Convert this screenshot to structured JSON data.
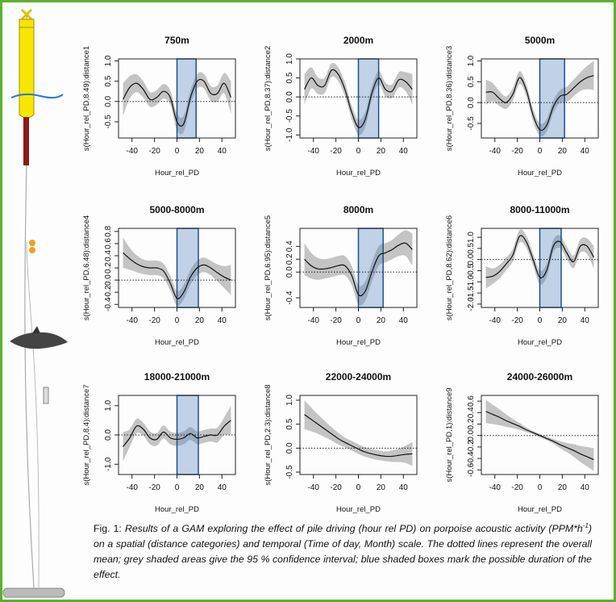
{
  "chart_data": [
    {
      "type": "line",
      "title": "750m",
      "ylabel": "s(Hour_rel_PD,8.49):distance1",
      "xlabel": "Hour_rel_PD",
      "x": [
        -48,
        -42,
        -36,
        -30,
        -24,
        -18,
        -12,
        -6,
        0,
        6,
        12,
        18,
        24,
        30,
        36,
        42,
        48
      ],
      "values": [
        0.05,
        0.35,
        0.45,
        0.3,
        0.05,
        0.1,
        0.25,
        0.1,
        -0.5,
        -0.55,
        0.1,
        0.5,
        0.5,
        0.2,
        0.2,
        0.45,
        0.1
      ],
      "upper": [
        0.45,
        0.63,
        0.67,
        0.5,
        0.23,
        0.28,
        0.43,
        0.28,
        -0.3,
        -0.35,
        0.28,
        0.68,
        0.68,
        0.38,
        0.4,
        0.7,
        0.5
      ],
      "lower": [
        -0.35,
        0.07,
        0.23,
        0.1,
        -0.13,
        -0.08,
        0.07,
        -0.08,
        -0.7,
        -0.75,
        -0.08,
        0.32,
        0.32,
        0.02,
        0,
        0.2,
        -0.3
      ],
      "mean": 0,
      "highlight": [
        0,
        17
      ],
      "xlim": [
        -52,
        52
      ],
      "xticks": [
        -40,
        -20,
        0,
        20,
        40
      ],
      "ylim": [
        -0.9,
        1.05
      ],
      "yticks": [
        -0.5,
        {
          "value": 0,
          "label": "0.0"
        },
        0.5,
        {
          "value": 1,
          "label": "1.0"
        }
      ]
    },
    {
      "type": "line",
      "title": "2000m",
      "ylabel": "s(Hour_rel_PD,8.37):distance2",
      "xlabel": "Hour_rel_PD",
      "x": [
        -48,
        -42,
        -36,
        -30,
        -24,
        -18,
        -12,
        -6,
        0,
        6,
        12,
        18,
        24,
        30,
        36,
        42,
        48
      ],
      "values": [
        0.2,
        0.5,
        0.3,
        0.3,
        0.7,
        0.6,
        0.2,
        -0.4,
        -0.8,
        -0.6,
        0.1,
        0.5,
        0.2,
        0.15,
        0.45,
        0.4,
        0.2
      ],
      "upper": [
        0.6,
        0.78,
        0.52,
        0.5,
        0.88,
        0.78,
        0.38,
        -0.22,
        -0.6,
        -0.4,
        0.28,
        0.68,
        0.38,
        0.33,
        0.65,
        0.65,
        0.6
      ],
      "lower": [
        -0.2,
        0.22,
        0.08,
        0.1,
        0.52,
        0.42,
        0.02,
        -0.58,
        -1.0,
        -0.8,
        -0.08,
        0.32,
        0.02,
        -0.03,
        0.25,
        0.15,
        -0.2
      ],
      "mean": 0,
      "highlight": [
        0,
        18
      ],
      "xlim": [
        -52,
        52
      ],
      "xticks": [
        -40,
        -20,
        0,
        20,
        40
      ],
      "ylim": [
        -1.08,
        1.0
      ],
      "yticks": [
        {
          "value": -1,
          "label": "-1.0"
        },
        -0.5,
        {
          "value": 0,
          "label": "0.0"
        },
        0.5,
        {
          "value": 1,
          "label": "1.0"
        }
      ]
    },
    {
      "type": "line",
      "title": "5000m",
      "ylabel": "s(Hour_rel_PD,8.36):distance3",
      "xlabel": "Hour_rel_PD",
      "x": [
        -48,
        -42,
        -36,
        -30,
        -24,
        -18,
        -12,
        -6,
        0,
        6,
        12,
        18,
        24,
        30,
        36,
        42,
        48
      ],
      "values": [
        0.25,
        0.25,
        0.1,
        0.0,
        0.2,
        0.6,
        0.3,
        -0.3,
        -0.65,
        -0.55,
        -0.1,
        0.15,
        0.2,
        0.35,
        0.5,
        0.6,
        0.65
      ],
      "upper": [
        0.55,
        0.47,
        0.28,
        0.15,
        0.35,
        0.75,
        0.45,
        -0.15,
        -0.5,
        -0.4,
        0.05,
        0.3,
        0.38,
        0.55,
        0.72,
        0.88,
        1.0
      ],
      "lower": [
        -0.05,
        0.03,
        -0.08,
        -0.15,
        0.05,
        0.45,
        0.15,
        -0.45,
        -0.8,
        -0.7,
        -0.25,
        0,
        0.02,
        0.15,
        0.28,
        0.32,
        0.3
      ],
      "mean": 0,
      "highlight": [
        0,
        22
      ],
      "xlim": [
        -52,
        52
      ],
      "xticks": [
        -40,
        -20,
        0,
        20,
        40
      ],
      "ylim": [
        -0.85,
        1.05
      ],
      "yticks": [
        -0.5,
        {
          "value": 0,
          "label": "0.0"
        },
        0.5,
        {
          "value": 1,
          "label": "1.0"
        }
      ]
    },
    {
      "type": "line",
      "title": "5000-8000m",
      "ylabel": "s(Hour_rel_PD,6.48):distance4",
      "xlabel": "Hour_rel_PD",
      "x": [
        -48,
        -42,
        -36,
        -30,
        -24,
        -18,
        -12,
        -6,
        0,
        6,
        12,
        18,
        24,
        30,
        36,
        42,
        48
      ],
      "values": [
        0.45,
        0.35,
        0.27,
        0.22,
        0.2,
        0.2,
        0.15,
        -0.05,
        -0.3,
        -0.2,
        0.05,
        0.2,
        0.25,
        0.2,
        0.12,
        0.05,
        0
      ],
      "upper": [
        0.7,
        0.53,
        0.41,
        0.34,
        0.32,
        0.32,
        0.27,
        0.07,
        -0.18,
        -0.08,
        0.17,
        0.32,
        0.37,
        0.32,
        0.26,
        0.23,
        0.25
      ],
      "lower": [
        0.2,
        0.17,
        0.13,
        0.1,
        0.08,
        0.08,
        0.03,
        -0.17,
        -0.42,
        -0.32,
        -0.07,
        0.08,
        0.13,
        0.08,
        -0.02,
        -0.13,
        -0.25
      ],
      "mean": 0,
      "highlight": [
        0,
        19
      ],
      "xlim": [
        -52,
        52
      ],
      "xticks": [
        -40,
        -20,
        0,
        20,
        40
      ],
      "ylim": [
        -0.45,
        0.85
      ],
      "yticks": [
        -0.4,
        -0.2,
        {
          "value": 0,
          "label": "0.0"
        },
        0.2,
        0.4,
        0.6,
        0.8
      ]
    },
    {
      "type": "line",
      "title": "8000m",
      "ylabel": "s(Hour_rel_PD,6.95):distance5",
      "xlabel": "Hour_rel_PD",
      "x": [
        -48,
        -42,
        -36,
        -30,
        -24,
        -18,
        -12,
        -6,
        0,
        6,
        12,
        18,
        24,
        30,
        36,
        42,
        48
      ],
      "values": [
        0.2,
        0.1,
        0.05,
        0.05,
        0.07,
        0.1,
        0.1,
        -0.05,
        -0.35,
        -0.3,
        0,
        0.25,
        0.3,
        0.35,
        0.42,
        0.45,
        0.35
      ],
      "upper": [
        0.45,
        0.3,
        0.22,
        0.2,
        0.22,
        0.25,
        0.25,
        0.1,
        -0.2,
        -0.15,
        0.15,
        0.4,
        0.45,
        0.5,
        0.59,
        0.65,
        0.6
      ],
      "lower": [
        -0.05,
        -0.1,
        -0.12,
        -0.1,
        -0.08,
        -0.05,
        -0.05,
        -0.2,
        -0.5,
        -0.45,
        -0.15,
        0.1,
        0.15,
        0.2,
        0.25,
        0.25,
        0.1
      ],
      "mean": 0,
      "highlight": [
        0,
        22
      ],
      "xlim": [
        -52,
        52
      ],
      "xticks": [
        -40,
        -20,
        0,
        20,
        40
      ],
      "ylim": [
        -0.55,
        0.68
      ],
      "yticks": [
        -0.4,
        {
          "value": 0,
          "label": "0.0"
        },
        0.2,
        0.4
      ]
    },
    {
      "type": "line",
      "title": "8000-11000m",
      "ylabel": "s(Hour_rel_PD,8.62):distance6",
      "xlabel": "Hour_rel_PD",
      "x": [
        -48,
        -42,
        -36,
        -30,
        -24,
        -18,
        -12,
        -6,
        0,
        6,
        12,
        18,
        24,
        30,
        36,
        42,
        48
      ],
      "values": [
        -0.8,
        -0.75,
        -0.55,
        -0.2,
        0.2,
        1.05,
        0.8,
        0,
        -0.8,
        -0.5,
        0.6,
        0.8,
        0.3,
        -0.1,
        0.6,
        0.6,
        0.1
      ],
      "upper": [
        -0.3,
        -0.4,
        -0.25,
        0.08,
        0.48,
        1.33,
        1.08,
        0.28,
        -0.5,
        -0.2,
        0.88,
        1.08,
        0.58,
        0.18,
        0.9,
        0.95,
        0.6
      ],
      "lower": [
        -1.3,
        -1.1,
        -0.85,
        -0.48,
        -0.08,
        0.77,
        0.52,
        -0.28,
        -1.1,
        -0.8,
        0.32,
        0.52,
        0.02,
        -0.38,
        0.3,
        0.25,
        -0.4
      ],
      "mean": 0,
      "highlight": [
        0,
        19
      ],
      "xlim": [
        -52,
        52
      ],
      "xticks": [
        -40,
        -20,
        0,
        20,
        40
      ],
      "ylim": [
        -2.15,
        1.4
      ],
      "yticks": [
        {
          "value": -2,
          "label": "-2.0"
        },
        -1.5,
        {
          "value": -1,
          "label": "-1.0"
        },
        -0.5,
        {
          "value": 0,
          "label": "0.0"
        },
        0.5,
        {
          "value": 1,
          "label": "1.0"
        }
      ]
    },
    {
      "type": "line",
      "title": "18000-21000m",
      "ylabel": "s(Hour_rel_PD,8.4):distance7",
      "xlabel": "Hour_rel_PD",
      "x": [
        -48,
        -42,
        -36,
        -30,
        -24,
        -18,
        -12,
        -6,
        0,
        6,
        12,
        18,
        24,
        30,
        36,
        42,
        48
      ],
      "values": [
        -0.4,
        -0.1,
        0.3,
        0.2,
        -0.1,
        -0.15,
        0.1,
        -0.1,
        -0.15,
        -0.1,
        0.05,
        -0.1,
        -0.05,
        0,
        0,
        0.3,
        0.5
      ],
      "upper": [
        0.1,
        0.2,
        0.55,
        0.42,
        0.12,
        0.07,
        0.32,
        0.12,
        0.07,
        0.12,
        0.27,
        0.12,
        0.17,
        0.22,
        0.25,
        0.6,
        1.0
      ],
      "lower": [
        -0.9,
        -0.4,
        0.05,
        -0.02,
        -0.32,
        -0.37,
        -0.12,
        -0.32,
        -0.37,
        -0.32,
        -0.17,
        -0.32,
        -0.27,
        -0.22,
        -0.25,
        0,
        0
      ],
      "mean": 0,
      "highlight": [
        0,
        19
      ],
      "xlim": [
        -52,
        52
      ],
      "xticks": [
        -40,
        -20,
        0,
        20,
        40
      ],
      "ylim": [
        -1.35,
        1.35
      ],
      "yticks": [
        {
          "value": -1,
          "label": "-1.0"
        },
        {
          "value": 0,
          "label": "0.0"
        },
        {
          "value": 1,
          "label": "1.0"
        }
      ]
    },
    {
      "type": "line",
      "title": "22000-24000m",
      "ylabel": "s(Hour_rel_PD,2.3):distance8",
      "xlabel": "Hour_rel_PD",
      "x": [
        -48,
        -42,
        -36,
        -30,
        -24,
        -18,
        -12,
        -6,
        0,
        6,
        12,
        18,
        24,
        30,
        36,
        42,
        48
      ],
      "values": [
        0.7,
        0.6,
        0.5,
        0.4,
        0.3,
        0.2,
        0.12,
        0.05,
        -0.02,
        -0.08,
        -0.12,
        -0.15,
        -0.17,
        -0.17,
        -0.15,
        -0.13,
        -0.12
      ],
      "upper": [
        1.0,
        0.85,
        0.7,
        0.57,
        0.44,
        0.32,
        0.22,
        0.15,
        0.08,
        0.02,
        -0.02,
        -0.05,
        -0.07,
        -0.05,
        -0.01,
        0.05,
        0.13
      ],
      "lower": [
        0.4,
        0.35,
        0.3,
        0.23,
        0.16,
        0.08,
        0.02,
        -0.05,
        -0.12,
        -0.18,
        -0.22,
        -0.25,
        -0.27,
        -0.29,
        -0.29,
        -0.31,
        -0.37
      ],
      "mean": 0,
      "xlim": [
        -52,
        52
      ],
      "xticks": [
        -40,
        -20,
        0,
        20,
        40
      ],
      "ylim": [
        -0.55,
        1.1
      ],
      "yticks": [
        -0.5,
        {
          "value": 0,
          "label": "0.0"
        },
        0.5,
        {
          "value": 1,
          "label": "1.0"
        }
      ]
    },
    {
      "type": "line",
      "title": "24000-26000m",
      "ylabel": "s(Hour_rel_PD,1):distance9",
      "xlabel": "Hour_rel_PD",
      "x": [
        -48,
        -42,
        -36,
        -30,
        -24,
        -18,
        -12,
        -6,
        0,
        6,
        12,
        18,
        24,
        30,
        36,
        42,
        48
      ],
      "values": [
        0.42,
        0.37,
        0.32,
        0.26,
        0.21,
        0.16,
        0.1,
        0.05,
        0,
        -0.05,
        -0.1,
        -0.16,
        -0.21,
        -0.26,
        -0.32,
        -0.37,
        -0.42
      ],
      "upper": [
        0.62,
        0.54,
        0.46,
        0.37,
        0.29,
        0.22,
        0.14,
        0.08,
        0.03,
        -0.02,
        -0.06,
        -0.1,
        -0.13,
        -0.15,
        -0.18,
        -0.2,
        -0.22
      ],
      "lower": [
        0.22,
        0.2,
        0.18,
        0.15,
        0.13,
        0.1,
        0.06,
        0.02,
        -0.03,
        -0.08,
        -0.14,
        -0.22,
        -0.29,
        -0.37,
        -0.46,
        -0.54,
        -0.62
      ],
      "mean": 0,
      "xlim": [
        -52,
        52
      ],
      "xticks": [
        -40,
        -20,
        0,
        20,
        40
      ],
      "ylim": [
        -0.68,
        0.7
      ],
      "yticks": [
        -0.6,
        -0.4,
        -0.2,
        {
          "value": 0,
          "label": "0.0"
        },
        0.2,
        0.4,
        0.6
      ]
    }
  ],
  "caption": {
    "label": "Fig. 1:",
    "text_before": "Results of a GAM exploring the effect of pile driving (hour rel PD) on porpoise acoustic activity (PPM*h",
    "superscript": "-1",
    "text_after": ") on a spatial (distance categories) and temporal (Time of day, Month) scale. The dotted lines represent the overall mean; grey shaded areas give the 95 % confidence interval; blue shaded boxes mark the possible duration of the effect."
  }
}
